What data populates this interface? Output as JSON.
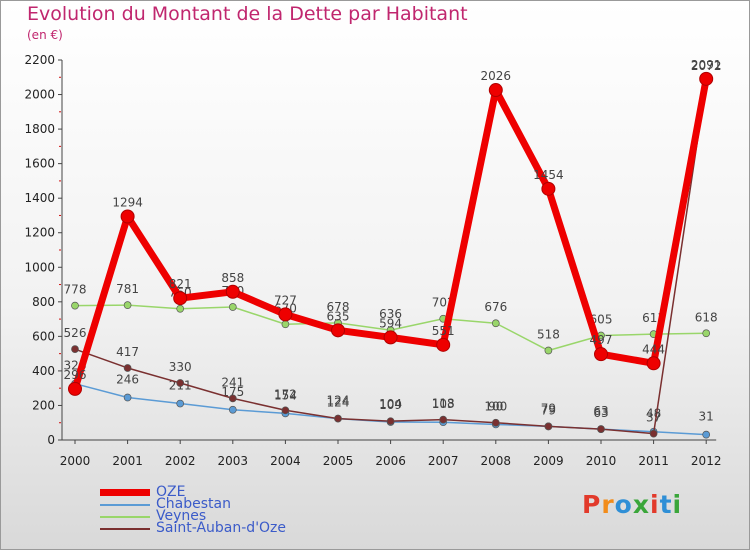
{
  "header": {
    "title": "Evolution du Montant de la Dette par Habitant",
    "subtitle": "(en €)"
  },
  "logo": {
    "text": "Proxiti",
    "colors": [
      "#e23a2b",
      "#f28c1a",
      "#2f8fd6",
      "#3aa63a",
      "#e23a2b",
      "#2f8fd6",
      "#3aa63a"
    ]
  },
  "chart_data": {
    "type": "line",
    "title": "Evolution du Montant de la Dette par Habitant",
    "subtitle": "(en €)",
    "xlabel": "",
    "ylabel": "",
    "categories": [
      "2000",
      "2001",
      "2002",
      "2003",
      "2004",
      "2005",
      "2006",
      "2007",
      "2008",
      "2009",
      "2010",
      "2011",
      "2012"
    ],
    "ylim": [
      0,
      2200
    ],
    "yticks": [
      0,
      200,
      400,
      600,
      800,
      1000,
      1200,
      1400,
      1600,
      1800,
      2000,
      2200
    ],
    "grid": false,
    "legend": "bottom-left",
    "series": [
      {
        "name": "OZE",
        "color": "#ee0000",
        "values": [
          296,
          1294,
          821,
          858,
          727,
          635,
          594,
          551,
          2026,
          1454,
          497,
          444,
          2091
        ],
        "labels": [
          "296",
          "1294",
          "821",
          "858",
          "727",
          "635",
          "594",
          "551",
          "2026",
          "1454",
          "497",
          "444",
          "2091"
        ]
      },
      {
        "name": "Chabestan",
        "color": "#5b9bd5",
        "values": [
          326,
          246,
          211,
          175,
          154,
          124,
          104,
          103,
          90,
          79,
          63,
          48,
          31
        ],
        "labels": [
          "326",
          "246",
          "211",
          "175",
          "154",
          "124",
          "104",
          "103",
          "90",
          "79",
          "63",
          "48",
          "31"
        ]
      },
      {
        "name": "Veynes",
        "color": "#99d66a",
        "values": [
          778,
          781,
          760,
          770,
          670,
          678,
          636,
          702,
          676,
          518,
          605,
          613,
          618
        ],
        "labels": [
          "778",
          "781",
          "760",
          "770",
          "670",
          "678",
          "636",
          "702",
          "676",
          "518",
          "605",
          "613",
          "618"
        ]
      },
      {
        "name": "Saint-Auban-d'Oze",
        "color": "#7a3030",
        "values": [
          526,
          417,
          330,
          241,
          172,
          124,
          109,
          118,
          100,
          79,
          63,
          37,
          2072
        ],
        "labels": [
          "526",
          "417",
          "330",
          "241",
          "172",
          "124",
          "109",
          "118",
          "100",
          "79",
          "63",
          "37",
          "2072"
        ]
      }
    ]
  }
}
